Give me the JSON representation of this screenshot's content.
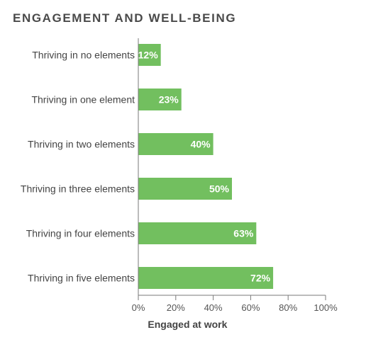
{
  "chart_data": {
    "type": "bar",
    "orientation": "horizontal",
    "title": "ENGAGEMENT AND WELL-BEING",
    "categories": [
      "Thriving in no elements",
      "Thriving in one element",
      "Thriving in two elements",
      "Thriving in three elements",
      "Thriving in four elements",
      "Thriving in five elements"
    ],
    "values": [
      12,
      23,
      40,
      50,
      63,
      72
    ],
    "value_labels": [
      "12%",
      "23%",
      "40%",
      "50%",
      "63%",
      "72%"
    ],
    "xlabel": "Engaged at work",
    "xlim": [
      0,
      100
    ],
    "x_ticks": [
      0,
      20,
      40,
      60,
      80,
      100
    ],
    "x_tick_labels": [
      "0%",
      "20%",
      "40%",
      "60%",
      "80%",
      "100%"
    ],
    "grid": false,
    "bar_color": "#72bf5f",
    "label_color": "#ffffff"
  }
}
